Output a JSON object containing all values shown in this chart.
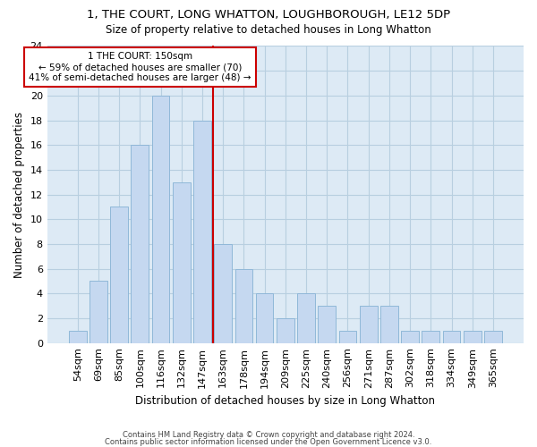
{
  "title1": "1, THE COURT, LONG WHATTON, LOUGHBOROUGH, LE12 5DP",
  "title2": "Size of property relative to detached houses in Long Whatton",
  "xlabel": "Distribution of detached houses by size in Long Whatton",
  "ylabel": "Number of detached properties",
  "categories": [
    "54sqm",
    "69sqm",
    "85sqm",
    "100sqm",
    "116sqm",
    "132sqm",
    "147sqm",
    "163sqm",
    "178sqm",
    "194sqm",
    "209sqm",
    "225sqm",
    "240sqm",
    "256sqm",
    "271sqm",
    "287sqm",
    "302sqm",
    "318sqm",
    "334sqm",
    "349sqm",
    "365sqm"
  ],
  "values": [
    1,
    5,
    11,
    16,
    20,
    13,
    18,
    8,
    6,
    4,
    2,
    4,
    3,
    1,
    3,
    3,
    1,
    1,
    1,
    1,
    1
  ],
  "bar_color": "#c5d8f0",
  "bar_edgecolor": "#90b8d8",
  "grid_color": "#b8cfe0",
  "background_color": "#ddeaf5",
  "vline_x_index": 6.5,
  "vline_color": "#cc0000",
  "annotation_text": "1 THE COURT: 150sqm\n← 59% of detached houses are smaller (70)\n41% of semi-detached houses are larger (48) →",
  "annotation_box_color": "#ffffff",
  "annotation_box_edgecolor": "#cc0000",
  "ylim": [
    0,
    24
  ],
  "yticks": [
    0,
    2,
    4,
    6,
    8,
    10,
    12,
    14,
    16,
    18,
    20,
    22,
    24
  ],
  "footer1": "Contains HM Land Registry data © Crown copyright and database right 2024.",
  "footer2": "Contains public sector information licensed under the Open Government Licence v3.0."
}
